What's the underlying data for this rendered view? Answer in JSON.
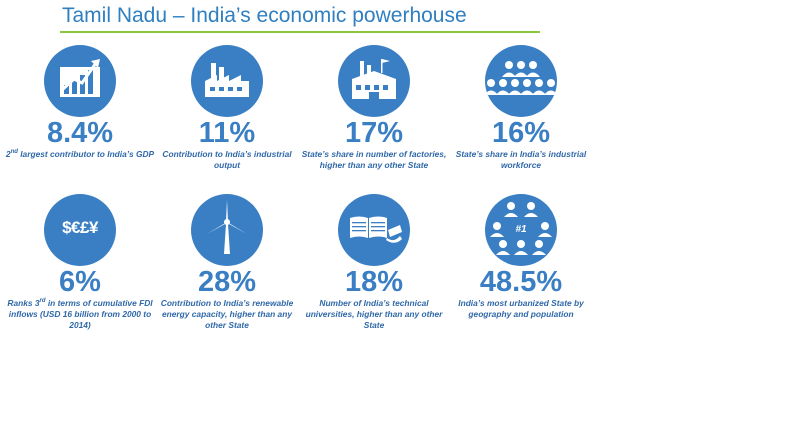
{
  "title": "Tamil Nadu – India’s economic powerhouse",
  "accent_color": "#3a7fc4",
  "rule_color": "#8cc63f",
  "stats": [
    {
      "icon": "growth-chart-icon",
      "value": "8.4%",
      "desc_pre": "2",
      "desc_sup": "nd",
      "desc_post": " largest contributor to India’s GDP"
    },
    {
      "icon": "factory-icon",
      "value": "11%",
      "desc": "Contribution to India’s industrial output"
    },
    {
      "icon": "factory-building-icon",
      "value": "17%",
      "desc": "State’s share in number of factories, higher than any other State"
    },
    {
      "icon": "workforce-icon",
      "value": "16%",
      "desc": "State’s share in India’s industrial workforce"
    },
    {
      "icon": "currency-icon",
      "currency_text": "$€£¥",
      "value": "6%",
      "desc_pre": "Ranks 3",
      "desc_sup": "rd",
      "desc_post": " in terms of cumulative FDI inflows (USD 16 billion from 2000 to 2014)"
    },
    {
      "icon": "wind-turbine-icon",
      "value": "28%",
      "desc": "Contribution to India’s renewable energy capacity, higher than any other State"
    },
    {
      "icon": "book-graduation-icon",
      "value": "18%",
      "desc": "Number of India’s technical universities, higher than any other State"
    },
    {
      "icon": "urban-population-icon",
      "badge": "#1",
      "value": "48.5%",
      "desc": "India’s most urbanized State by geography and population"
    }
  ]
}
